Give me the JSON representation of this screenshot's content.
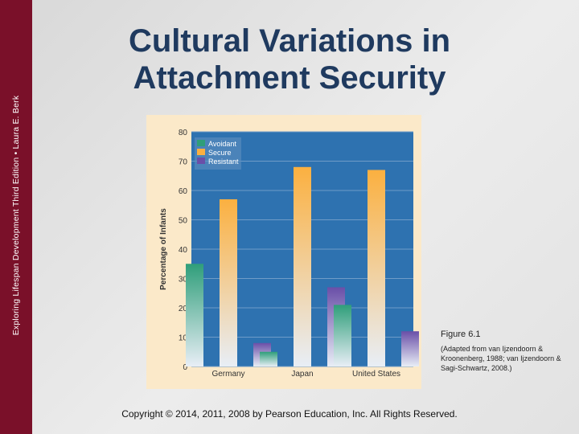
{
  "sidebar": {
    "text": "Exploring Lifespan Development Third Edition • Laura E. Berk"
  },
  "slide": {
    "title_line1": "Cultural Variations in",
    "title_line2": "Attachment Security"
  },
  "figure": {
    "label": "Figure 6.1",
    "note": "(Adapted from van Ijzendoorn & Kroonenberg, 1988; van Ijzendoorn & Sagi-Schwartz, 2008.)"
  },
  "footer": {
    "copyright": "Copyright © 2014, 2011, 2008 by Pearson Education, Inc. All Rights Reserved."
  },
  "chart_data": {
    "type": "bar",
    "title": "",
    "xlabel": "",
    "ylabel": "Percentage of Infants",
    "ylim": [
      0,
      80
    ],
    "yticks": [
      0,
      10,
      20,
      30,
      40,
      50,
      60,
      70,
      80
    ],
    "categories": [
      "Germany",
      "Japan",
      "United States"
    ],
    "series": [
      {
        "name": "Avoidant",
        "values": [
          35,
          5,
          21
        ],
        "color": "#2f9e7a"
      },
      {
        "name": "Secure",
        "values": [
          57,
          68,
          67
        ],
        "color": "#fbb040"
      },
      {
        "name": "Resistant",
        "values": [
          8,
          27,
          12
        ],
        "color": "#6a4fa8"
      }
    ],
    "legend": "top-left",
    "grid": true,
    "plot_background": "#2e72b0"
  }
}
